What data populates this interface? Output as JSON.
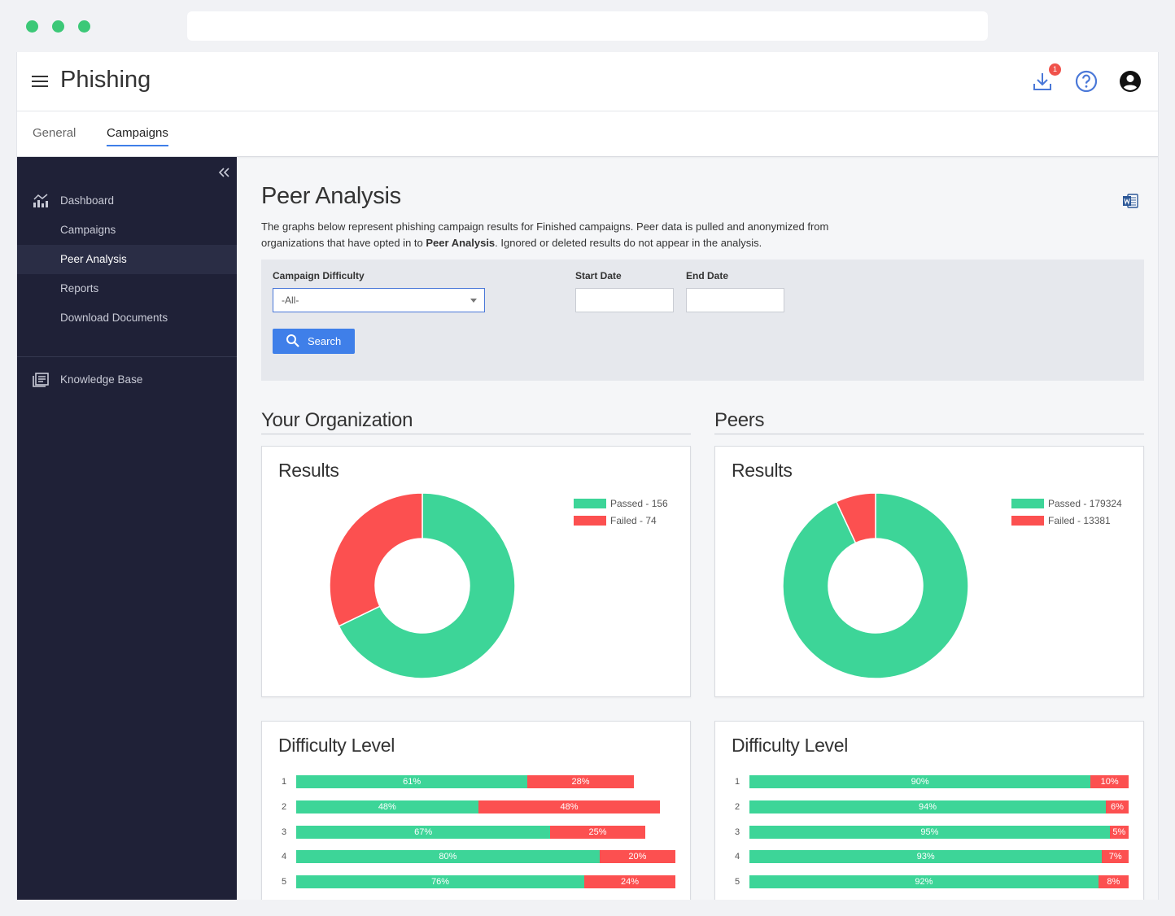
{
  "app": {
    "title": "Phishing",
    "notification_count": "1"
  },
  "tabs": [
    {
      "label": "General",
      "active": false
    },
    {
      "label": "Campaigns",
      "active": true
    }
  ],
  "sidebar": {
    "items": [
      {
        "label": "Dashboard",
        "icon": "chart-icon"
      },
      {
        "label": "Campaigns"
      },
      {
        "label": "Peer Analysis",
        "active": true
      },
      {
        "label": "Reports"
      },
      {
        "label": "Download Documents"
      },
      {
        "label": "Knowledge Base",
        "icon": "book-icon"
      }
    ]
  },
  "page": {
    "title": "Peer Analysis",
    "desc_1": "The graphs below represent phishing campaign results for Finished campaigns. Peer data is pulled and anonymized from organizations that have opted in to ",
    "desc_bold": "Peer Analysis",
    "desc_2": ". Ignored or deleted results do not appear in the analysis."
  },
  "filter": {
    "difficulty_label": "Campaign Difficulty",
    "difficulty_value": "-All-",
    "start_label": "Start Date",
    "end_label": "End Date",
    "start_value": "",
    "end_value": "",
    "search_label": "Search"
  },
  "sections": {
    "org_title": "Your Organization",
    "peers_title": "Peers"
  },
  "colors": {
    "passed": "#3dd598",
    "failed": "#fc5050",
    "accent": "#3f7fe9"
  },
  "cards": {
    "results_title": "Results",
    "difficulty_title": "Difficulty Level"
  },
  "chart_data": [
    {
      "type": "pie",
      "title": "Results",
      "slices": [
        {
          "name": "Passed",
          "label": "Passed - 156",
          "value": 156
        },
        {
          "name": "Failed",
          "label": "Failed - 74",
          "value": 74
        }
      ]
    },
    {
      "type": "pie",
      "title": "Results",
      "slices": [
        {
          "name": "Passed",
          "label": "Passed - 179324",
          "value": 179324
        },
        {
          "name": "Failed",
          "label": "Failed - 13381",
          "value": 13381
        }
      ]
    },
    {
      "type": "bar",
      "title": "Difficulty Level",
      "categories": [
        "1",
        "2",
        "3",
        "4",
        "5"
      ],
      "series": [
        {
          "name": "Passed",
          "values": [
            61,
            48,
            67,
            80,
            76
          ]
        },
        {
          "name": "Failed",
          "values": [
            28,
            48,
            25,
            20,
            24
          ]
        }
      ]
    },
    {
      "type": "bar",
      "title": "Difficulty Level",
      "categories": [
        "1",
        "2",
        "3",
        "4",
        "5"
      ],
      "series": [
        {
          "name": "Passed",
          "values": [
            90,
            94,
            95,
            93,
            92
          ]
        },
        {
          "name": "Failed",
          "values": [
            10,
            6,
            5,
            7,
            8
          ]
        }
      ]
    }
  ]
}
